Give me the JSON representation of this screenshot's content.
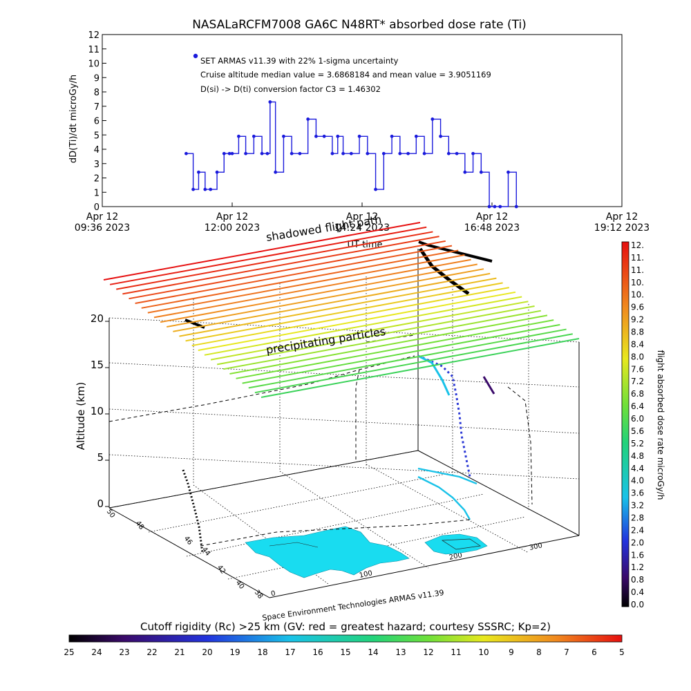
{
  "chart_data": [
    {
      "type": "line",
      "title": "NASALaRCFM7008  GA6C N48RT* absorbed dose rate (Ti)",
      "ylabel": "dD(Ti)/dt microGy/h",
      "xlabel": "UT time",
      "ylim": [
        0,
        12
      ],
      "y_ticks": [
        "0",
        "1",
        "2",
        "3",
        "4",
        "5",
        "6",
        "7",
        "8",
        "9",
        "10",
        "11",
        "12"
      ],
      "x_ticks": [
        {
          "line1": "Apr 12",
          "line2": "09:36 2023"
        },
        {
          "line1": "Apr 12",
          "line2": "12:00 2023"
        },
        {
          "line1": "Apr 12",
          "line2": "14:24 2023"
        },
        {
          "line1": "Apr 12",
          "line2": "16:48 2023"
        },
        {
          "line1": "Apr 12",
          "line2": "19:12 2023"
        }
      ],
      "legend": {
        "series_label": "SET ARMAS v11.39 with 22% 1-sigma uncertainty",
        "line2": "Cruise altitude median value = 3.6868184 and mean value = 3.9051169",
        "line3": "D(si) -> D(ti) conversion factor C3 = 1.46302"
      },
      "series_color": "#1a1adc",
      "grid": false,
      "series": [
        {
          "x_hours": [
            11.15,
            11.28,
            11.38,
            11.5,
            11.6,
            11.72,
            11.85,
            11.95,
            12.0,
            12.12,
            12.25,
            12.4,
            12.55,
            12.65,
            12.7,
            12.8,
            12.95,
            13.1,
            13.25,
            13.4,
            13.55,
            13.7,
            13.85,
            13.95,
            14.05,
            14.2,
            14.35,
            14.5,
            14.65,
            14.8,
            14.95,
            15.1,
            15.25,
            15.4,
            15.55,
            15.7,
            15.85,
            16.0,
            16.15,
            16.3,
            16.45,
            16.6,
            16.75,
            16.85,
            16.95,
            17.1,
            17.25
          ],
          "values": [
            3.7,
            1.2,
            2.4,
            1.2,
            1.2,
            2.4,
            3.7,
            3.7,
            3.7,
            4.9,
            3.7,
            4.9,
            3.7,
            3.7,
            7.3,
            2.4,
            4.9,
            3.7,
            3.7,
            6.1,
            4.9,
            4.9,
            3.7,
            4.9,
            3.7,
            3.7,
            4.9,
            3.7,
            1.2,
            3.7,
            4.9,
            3.7,
            3.7,
            4.9,
            3.7,
            6.1,
            4.9,
            3.7,
            3.7,
            2.4,
            3.7,
            2.4,
            0,
            0,
            0,
            2.4,
            0
          ]
        }
      ]
    },
    {
      "type": "scatter",
      "title": "",
      "zlabel": "Altitude (km)",
      "z_ticks": [
        "0",
        "5",
        "10",
        "15",
        "20"
      ],
      "lat_ticks": [
        "38",
        "40",
        "42",
        "44",
        "46",
        "48",
        "50"
      ],
      "lon_ticks": [
        "0",
        "100",
        "200",
        "300"
      ],
      "annotations": {
        "shadowed": "shadowed flight path",
        "precip": "precipitating particles",
        "credit": "Space Environment Technologies ARMAS v11.39"
      }
    }
  ],
  "colorbars": {
    "dose": {
      "label": "flight absorbed dose rate microGy/h",
      "ticks": [
        "12.",
        "11.",
        "11.",
        "10.",
        "10.",
        "9.6",
        "9.2",
        "8.8",
        "8.4",
        "8.0",
        "7.6",
        "7.2",
        "6.8",
        "6.4",
        "6.0",
        "5.6",
        "5.2",
        "4.8",
        "4.4",
        "4.0",
        "3.6",
        "3.2",
        "2.8",
        "2.4",
        "2.0",
        "1.6",
        "1.2",
        "0.8",
        "0.4",
        "0.0"
      ]
    },
    "rigidity": {
      "label": "Cutoff rigidity (Rc) >25 km (GV: red = greatest hazard; courtesy SSSRC; Kp=2)",
      "ticks": [
        "25",
        "24",
        "23",
        "22",
        "21",
        "20",
        "19",
        "18",
        "17",
        "16",
        "15",
        "14",
        "13",
        "12",
        "11",
        "10",
        "9",
        "8",
        "7",
        "6",
        "5"
      ]
    }
  }
}
